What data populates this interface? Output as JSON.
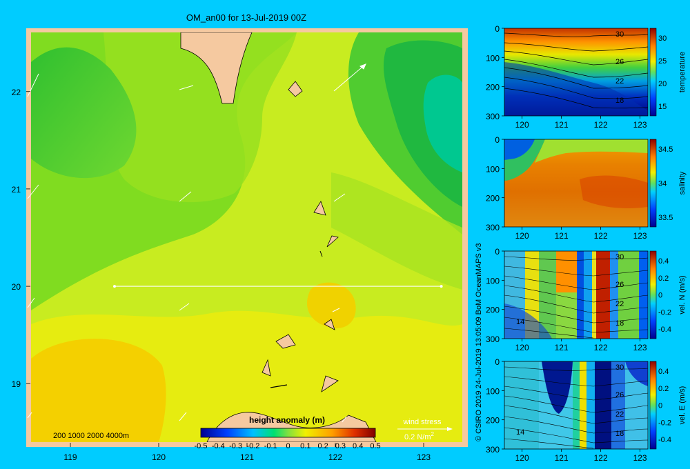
{
  "title": "OM_an00 for 13-Jul-2019 00Z",
  "colors": {
    "background": "#00ccff",
    "land": "#f5c9a0"
  },
  "map": {
    "x_ticks": [
      "119",
      "120",
      "121",
      "122",
      "123"
    ],
    "y_ticks": [
      "22",
      "21",
      "20",
      "19"
    ],
    "xlim": [
      118.5,
      123.5
    ],
    "ylim": [
      18.35,
      22.65
    ],
    "depth_legend": "200 1000 2000 4000m",
    "wind_label": "wind stress",
    "wind_scale": "0.2 N/m",
    "wind_scale_sup": "2",
    "section_line": {
      "lon": [
        119.5,
        123.2
      ],
      "lat": [
        20.0,
        20.0
      ]
    }
  },
  "colorbar": {
    "title": "height anomaly (m)",
    "ticks": [
      "-0.5",
      "-0.4",
      "-0.3",
      "-0.2",
      "-0.1",
      "0",
      "0.1",
      "0.2",
      "0.3",
      "0.4",
      "0.5"
    ],
    "range": [
      -0.5,
      0.5
    ]
  },
  "credit": "© CSIRO 2019   24-Jul-2019 13:05:09 BoM OceanMAPS v3",
  "sections": [
    {
      "label": "temperature",
      "cb_ticks": [
        "30",
        "25",
        "20",
        "15"
      ],
      "y_ticks": [
        "0",
        "100",
        "200",
        "300"
      ],
      "x_ticks": [
        "120",
        "121",
        "122",
        "123"
      ],
      "contour_labels": [
        "30",
        "26",
        "22",
        "18"
      ]
    },
    {
      "label": "salinity",
      "cb_ticks": [
        "34.5",
        "34",
        "33.5"
      ],
      "y_ticks": [
        "0",
        "100",
        "200",
        "300"
      ],
      "x_ticks": [
        "120",
        "121",
        "122",
        "123"
      ],
      "contour_labels": []
    },
    {
      "label": "vel. N (m/s)",
      "cb_ticks": [
        "0.4",
        "0.2",
        "0",
        "-0.2",
        "-0.4"
      ],
      "y_ticks": [
        "0",
        "100",
        "200",
        "300"
      ],
      "x_ticks": [
        "120",
        "121",
        "122",
        "123"
      ],
      "contour_labels": [
        "30",
        "26",
        "22",
        "18",
        "14"
      ]
    },
    {
      "label": "vel. E (m/s)",
      "cb_ticks": [
        "0.4",
        "0.2",
        "0",
        "-0.2",
        "-0.4"
      ],
      "y_ticks": [
        "0",
        "100",
        "200",
        "300"
      ],
      "x_ticks": [
        "120",
        "121",
        "122",
        "123"
      ],
      "contour_labels": [
        "30",
        "26",
        "22",
        "18",
        "14"
      ]
    }
  ],
  "chart_data": [
    {
      "type": "heatmap",
      "title": "OM_an00 for 13-Jul-2019 00Z",
      "variable": "height anomaly (m)",
      "xlim": [
        118.5,
        123.5
      ],
      "ylim": [
        18.35,
        22.65
      ],
      "value_range": [
        -0.5,
        0.5
      ],
      "approx_field": [
        {
          "region": "north-west",
          "value": -0.1
        },
        {
          "region": "north-east corner",
          "value": -0.25
        },
        {
          "region": "central",
          "value": 0.05
        },
        {
          "region": "south-west",
          "value": 0.2
        },
        {
          "region": "south-east",
          "value": 0.1
        }
      ]
    },
    {
      "type": "heatmap",
      "variable": "temperature",
      "xlim": [
        119.5,
        123.2
      ],
      "ylim": [
        300,
        0
      ],
      "value_range": [
        15,
        32
      ]
    },
    {
      "type": "heatmap",
      "variable": "salinity",
      "xlim": [
        119.5,
        123.2
      ],
      "ylim": [
        300,
        0
      ],
      "value_range": [
        33.4,
        34.9
      ]
    },
    {
      "type": "heatmap",
      "variable": "vel. N (m/s)",
      "xlim": [
        119.5,
        123.2
      ],
      "ylim": [
        300,
        0
      ],
      "value_range": [
        -0.4,
        0.4
      ]
    },
    {
      "type": "heatmap",
      "variable": "vel. E (m/s)",
      "xlim": [
        119.5,
        123.2
      ],
      "ylim": [
        300,
        0
      ],
      "value_range": [
        -0.4,
        0.4
      ]
    }
  ]
}
